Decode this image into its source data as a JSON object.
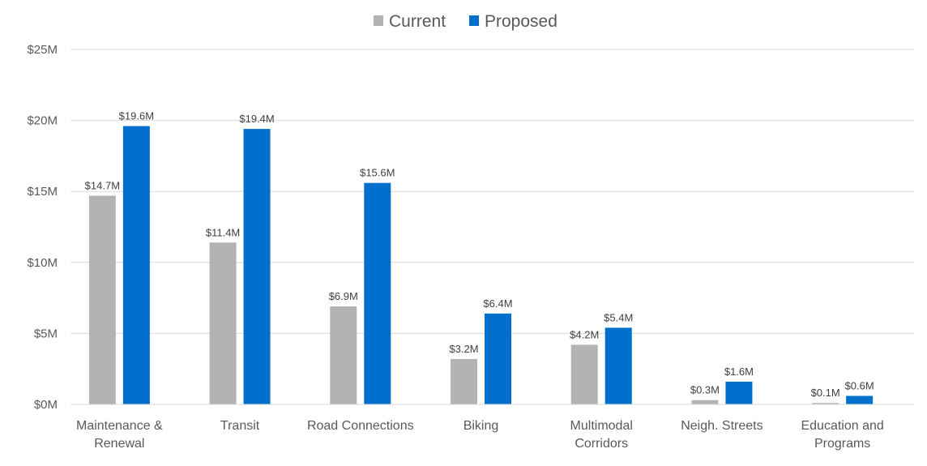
{
  "chart_data": {
    "type": "bar",
    "categories": [
      [
        "Maintenance &",
        "Renewal"
      ],
      [
        "Transit"
      ],
      [
        "Road Connections"
      ],
      [
        "Biking"
      ],
      [
        "Multimodal",
        "Corridors"
      ],
      [
        "Neigh. Streets"
      ],
      [
        "Education and",
        "Programs"
      ]
    ],
    "series": [
      {
        "name": "Current",
        "color": "#b3b3b3",
        "values": [
          14.7,
          11.4,
          6.9,
          3.2,
          4.2,
          0.3,
          0.1
        ],
        "labels": [
          "$14.7M",
          "$11.4M",
          "$6.9M",
          "$3.2M",
          "$4.2M",
          "$0.3M",
          "$0.1M"
        ]
      },
      {
        "name": "Proposed",
        "color": "#0070cc",
        "values": [
          19.6,
          19.4,
          15.6,
          6.4,
          5.4,
          1.6,
          0.6
        ],
        "labels": [
          "$19.6M",
          "$19.4M",
          "$15.6M",
          "$6.4M",
          "$5.4M",
          "$1.6M",
          "$0.6M"
        ]
      }
    ],
    "ylim": [
      0,
      25
    ],
    "yticks": [
      0,
      5,
      10,
      15,
      20,
      25
    ],
    "ytick_labels": [
      "$0M",
      "$5M",
      "$10M",
      "$15M",
      "$20M",
      "$25M"
    ],
    "grid": true,
    "legend_position": "top-center",
    "title": "",
    "xlabel": "",
    "ylabel": ""
  }
}
